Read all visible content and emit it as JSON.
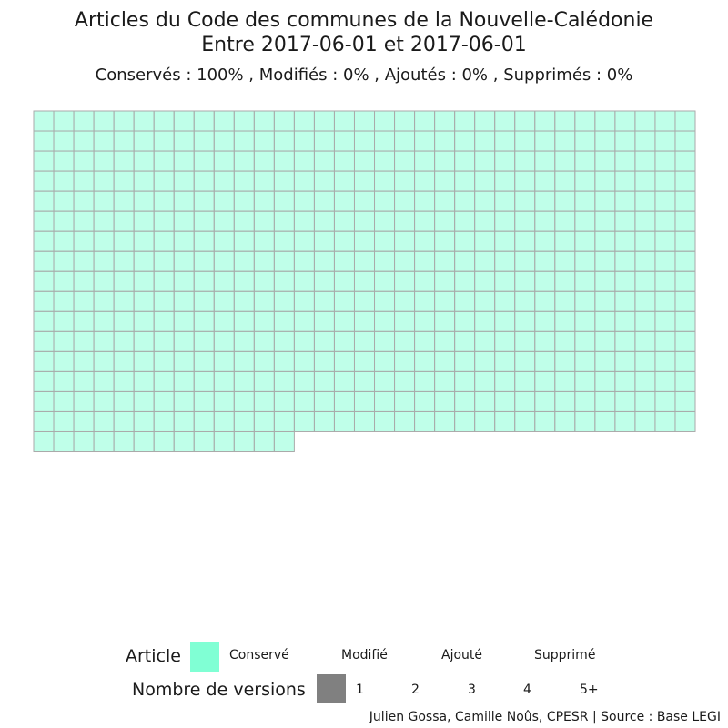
{
  "chart_data": {
    "type": "waffle",
    "title_line1": "Articles du Code des communes de la Nouvelle-Calédonie",
    "title_line2": "Entre 2017-06-01 et 2017-06-01",
    "subtitle": "Conservés :  100% , Modifiés :  0% , Ajoutés :  0% , Supprimés :  0%",
    "columns": 33,
    "categories": [
      {
        "name": "Conservé",
        "count": 541,
        "color": "#80ffd4"
      },
      {
        "name": "Modifié",
        "count": 0,
        "color": "#ffd480"
      },
      {
        "name": "Ajouté",
        "count": 0,
        "color": "#80b3ff"
      },
      {
        "name": "Supprimé",
        "count": 0,
        "color": "#ff8080"
      }
    ],
    "versions": {
      "1": 541,
      "2": 0,
      "3": 0,
      "4": 0,
      "5+": 0
    },
    "legend": {
      "article_title": "Article",
      "article_items": [
        "Conservé",
        "Modifié",
        "Ajouté",
        "Supprimé"
      ],
      "versions_title": "Nombre de versions",
      "versions_items": [
        "1",
        "2",
        "3",
        "4",
        "5+"
      ],
      "versions_swatch_color": "#808080"
    },
    "caption": "Julien Gossa, Camille Noûs, CPESR  |  Source : Base LEGI",
    "cell_fill_opacity_for_1_version": 0.5,
    "cell_border_color": "#aaaaaa"
  }
}
